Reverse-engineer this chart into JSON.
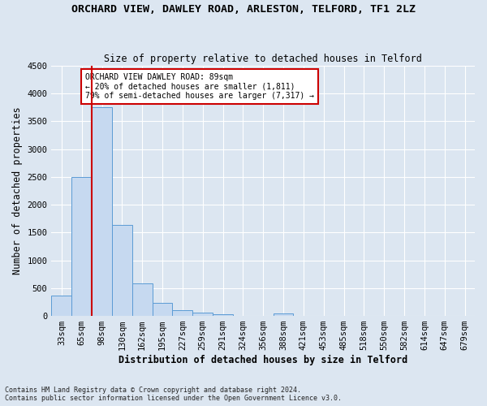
{
  "title_line1": "ORCHARD VIEW, DAWLEY ROAD, ARLESTON, TELFORD, TF1 2LZ",
  "title_line2": "Size of property relative to detached houses in Telford",
  "xlabel": "Distribution of detached houses by size in Telford",
  "ylabel": "Number of detached properties",
  "footnote": "Contains HM Land Registry data © Crown copyright and database right 2024.\nContains public sector information licensed under the Open Government Licence v3.0.",
  "bar_labels": [
    "33sqm",
    "65sqm",
    "98sqm",
    "130sqm",
    "162sqm",
    "195sqm",
    "227sqm",
    "259sqm",
    "291sqm",
    "324sqm",
    "356sqm",
    "388sqm",
    "421sqm",
    "453sqm",
    "485sqm",
    "518sqm",
    "550sqm",
    "582sqm",
    "614sqm",
    "647sqm",
    "679sqm"
  ],
  "bar_values": [
    370,
    2500,
    3750,
    1640,
    590,
    230,
    105,
    60,
    35,
    0,
    0,
    50,
    0,
    0,
    0,
    0,
    0,
    0,
    0,
    0,
    0
  ],
  "bar_color": "#c6d9f0",
  "bar_edge_color": "#5b9bd5",
  "vline_color": "#cc0000",
  "annotation_text": "ORCHARD VIEW DAWLEY ROAD: 89sqm\n← 20% of detached houses are smaller (1,811)\n79% of semi-detached houses are larger (7,317) →",
  "annotation_box_color": "#ffffff",
  "annotation_box_edge": "#cc0000",
  "ylim": [
    0,
    4500
  ],
  "yticks": [
    0,
    500,
    1000,
    1500,
    2000,
    2500,
    3000,
    3500,
    4000,
    4500
  ],
  "background_color": "#dce6f1",
  "grid_color": "#ffffff",
  "title_fontsize": 9.5,
  "subtitle_fontsize": 8.5,
  "axis_label_fontsize": 8.5,
  "tick_fontsize": 7.5,
  "footnote_fontsize": 6,
  "annotation_fontsize": 7
}
